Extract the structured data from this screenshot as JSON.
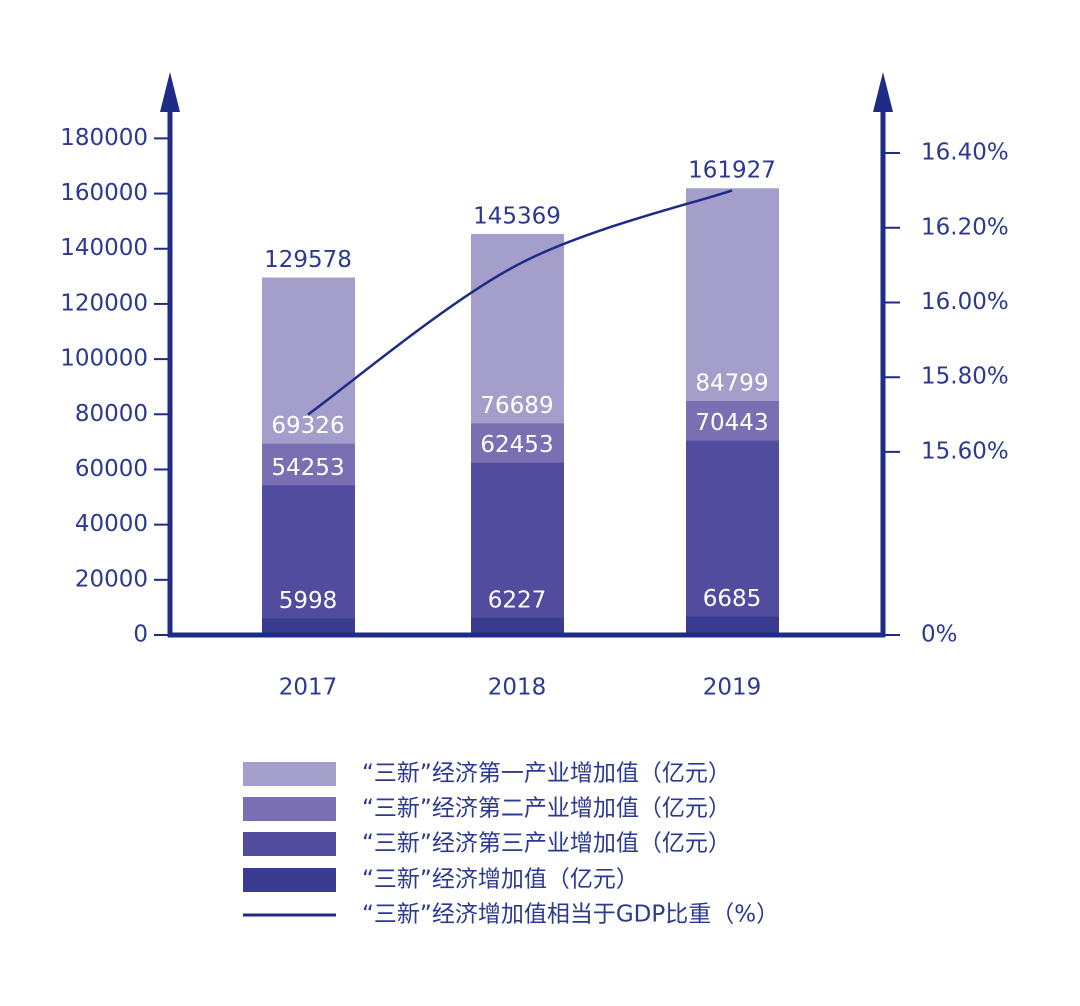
{
  "chart_data": {
    "type": "bar",
    "barmode": "overlay",
    "categories": [
      "2017",
      "2018",
      "2019"
    ],
    "series": [
      {
        "name": "“三新”经济第一产业增加值（亿元）",
        "color": "#a49ecb",
        "values": [
          129578,
          145369,
          161927
        ]
      },
      {
        "name": "“三新”经济第二产业增加值（亿元）",
        "color": "#7a6fb3",
        "values": [
          69326,
          76689,
          84799
        ]
      },
      {
        "name": "“三新”经济第三产业增加值（亿元）",
        "color": "#514c9e",
        "values": [
          54253,
          62453,
          70443
        ]
      },
      {
        "name": "“三新”经济增加值（亿元）",
        "color": "#383b8f",
        "values": [
          5998,
          6227,
          6685
        ]
      },
      {
        "name": "“三新”经济增加值相当于GDP比重（%）",
        "color": "#1e2b87",
        "type": "line",
        "axis": "y2",
        "values": [
          15.7,
          16.1,
          16.3
        ]
      }
    ],
    "ylim": [
      0,
      195000
    ],
    "yticks": [
      0,
      20000,
      40000,
      60000,
      80000,
      100000,
      120000,
      140000,
      160000,
      180000
    ],
    "y2lim": [
      0,
      16.55
    ],
    "y2break": 15.11,
    "y2ticks": [
      {
        "value": 0,
        "label": "0%"
      },
      {
        "value": 15.6,
        "label": "15.60%"
      },
      {
        "value": 15.8,
        "label": "15.80%"
      },
      {
        "value": 16.0,
        "label": "16.00%"
      },
      {
        "value": 16.2,
        "label": "16.20%"
      },
      {
        "value": 16.4,
        "label": "16.40%"
      }
    ],
    "axis_color": "#1e2b87"
  }
}
